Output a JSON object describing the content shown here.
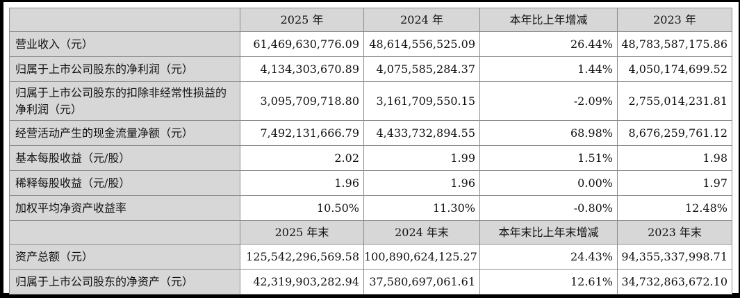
{
  "page": {
    "type": "financial-report-key-data-table",
    "background_color": "#ffffff",
    "frame_color": "#000000",
    "header_bg_color": "#d7d7d7",
    "grid_color": "#8c8c8c",
    "text_color": "#111111"
  },
  "chart_data": {
    "type": "table",
    "title": "",
    "sections": [
      {
        "header": [
          "",
          "2025 年",
          "2024 年",
          "本年比上年增减",
          "2023 年"
        ],
        "rows": [
          [
            "营业收入（元）",
            "61,469,630,776.09",
            "48,614,556,525.09",
            "26.44%",
            "48,783,587,175.86"
          ],
          [
            "归属于上市公司股东的净利润（元）",
            "4,134,303,670.89",
            "4,075,585,284.37",
            "1.44%",
            "4,050,174,699.52"
          ],
          [
            "归属于上市公司股东的扣除非经常性损益的净利润（元）",
            "3,095,709,718.80",
            "3,161,709,550.15",
            "-2.09%",
            "2,755,014,231.81"
          ],
          [
            "经营活动产生的现金流量净额（元）",
            "7,492,131,666.79",
            "4,433,732,894.55",
            "68.98%",
            "8,676,259,761.12"
          ],
          [
            "基本每股收益（元/股）",
            "2.02",
            "1.99",
            "1.51%",
            "1.98"
          ],
          [
            "稀释每股收益（元/股）",
            "1.96",
            "1.96",
            "0.00%",
            "1.97"
          ],
          [
            "加权平均净资产收益率",
            "10.50%",
            "11.30%",
            "-0.80%",
            "12.48%"
          ]
        ]
      },
      {
        "header": [
          "",
          "2025 年末",
          "2024 年末",
          "本年末比上年末增减",
          "2023 年末"
        ],
        "rows": [
          [
            "资产总额（元）",
            "125,542,296,569.58",
            "100,890,624,125.27",
            "24.43%",
            "94,355,337,998.71"
          ],
          [
            "归属于上市公司股东的净资产（元）",
            "42,319,903,282.94",
            "37,580,697,061.61",
            "12.61%",
            "34,732,863,672.10"
          ]
        ]
      }
    ]
  },
  "table": {
    "header1": {
      "c0": "",
      "c1": "2025 年",
      "c2": "2024 年",
      "c3": "本年比上年增减",
      "c4": "2023 年"
    },
    "rows1": [
      {
        "label": "营业收入（元）",
        "y2025": "61,469,630,776.09",
        "y2024": "48,614,556,525.09",
        "change": "26.44%",
        "y2023": "48,783,587,175.86"
      },
      {
        "label": "归属于上市公司股东的净利润（元）",
        "y2025": "4,134,303,670.89",
        "y2024": "4,075,585,284.37",
        "change": "1.44%",
        "y2023": "4,050,174,699.52"
      },
      {
        "label": "归属于上市公司股东的扣除非经常性损益的净利润（元）",
        "y2025": "3,095,709,718.80",
        "y2024": "3,161,709,550.15",
        "change": "-2.09%",
        "y2023": "2,755,014,231.81"
      },
      {
        "label": "经营活动产生的现金流量净额（元）",
        "y2025": "7,492,131,666.79",
        "y2024": "4,433,732,894.55",
        "change": "68.98%",
        "y2023": "8,676,259,761.12"
      },
      {
        "label": "基本每股收益（元/股）",
        "y2025": "2.02",
        "y2024": "1.99",
        "change": "1.51%",
        "y2023": "1.98"
      },
      {
        "label": "稀释每股收益（元/股）",
        "y2025": "1.96",
        "y2024": "1.96",
        "change": "0.00%",
        "y2023": "1.97"
      },
      {
        "label": "加权平均净资产收益率",
        "y2025": "10.50%",
        "y2024": "11.30%",
        "change": "-0.80%",
        "y2023": "12.48%"
      }
    ],
    "header2": {
      "c0": "",
      "c1": "2025 年末",
      "c2": "2024 年末",
      "c3": "本年末比上年末增减",
      "c4": "2023 年末"
    },
    "rows2": [
      {
        "label": "资产总额（元）",
        "y2025": "125,542,296,569.58",
        "y2024": "100,890,624,125.27",
        "change": "24.43%",
        "y2023": "94,355,337,998.71"
      },
      {
        "label": "归属于上市公司股东的净资产（元）",
        "y2025": "42,319,903,282.94",
        "y2024": "37,580,697,061.61",
        "change": "12.61%",
        "y2023": "34,732,863,672.10"
      }
    ]
  }
}
